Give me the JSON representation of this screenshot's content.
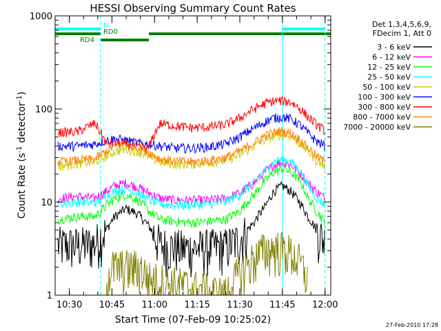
{
  "chart_data": {
    "type": "line",
    "title": "HESSI Observing Summary Count Rates",
    "xlabel": "Start Time (07-Feb-09 10:25:02)",
    "ylabel": "Count Rate (s⁻¹ detector⁻¹)",
    "ylabel_parts": {
      "main": "Count Rate (s",
      "sup1": "-1",
      "mid": " detector",
      "sup2": "-1",
      "end": ")"
    },
    "x_unit": "minutes after 10:25:02",
    "xlim": [
      0,
      97
    ],
    "ylim": [
      1,
      1000
    ],
    "y_scale": "log",
    "x_ticks": [
      {
        "label": "10:30",
        "value": 5
      },
      {
        "label": "10:45",
        "value": 20
      },
      {
        "label": "11:00",
        "value": 35
      },
      {
        "label": "11:15",
        "value": 50
      },
      {
        "label": "11:30",
        "value": 65
      },
      {
        "label": "11:45",
        "value": 80
      },
      {
        "label": "12:00",
        "value": 95
      }
    ],
    "y_ticks": [
      {
        "label": "1",
        "value": 1
      },
      {
        "label": "10",
        "value": 10
      },
      {
        "label": "100",
        "value": 100
      },
      {
        "label": "1000",
        "value": 1000
      }
    ],
    "legend": {
      "placement": "right",
      "header": [
        "Det 1,3,4,5,6,9,",
        "FDecim 1, Att 0"
      ]
    },
    "series": [
      {
        "name": "3 - 6 keV",
        "color": "#000000",
        "x": [
          1,
          8,
          14,
          18,
          21,
          25,
          29,
          33,
          37,
          42,
          48,
          54,
          60,
          65,
          70,
          74,
          77,
          80,
          83,
          86,
          89,
          92,
          95
        ],
        "y": [
          3.5,
          3.5,
          3.6,
          5,
          7,
          8.5,
          7.5,
          5.5,
          3.5,
          3.3,
          3.2,
          3.3,
          3.4,
          4,
          6,
          9,
          13,
          15,
          13,
          10,
          7,
          5,
          3.8
        ]
      },
      {
        "name": "6 - 12 keV",
        "color": "#ff00ff",
        "x": [
          1,
          8,
          14,
          18,
          21,
          25,
          29,
          33,
          37,
          42,
          48,
          54,
          60,
          65,
          70,
          74,
          77,
          80,
          83,
          86,
          89,
          92,
          95
        ],
        "y": [
          11,
          11.5,
          11,
          13,
          15,
          16,
          14.5,
          12.5,
          11,
          10.5,
          10.5,
          10.5,
          11,
          12.5,
          16,
          21,
          25,
          27,
          25,
          21,
          16,
          13,
          11
        ]
      },
      {
        "name": "12 - 25 keV",
        "color": "#00ff00",
        "x": [
          1,
          8,
          14,
          18,
          21,
          25,
          29,
          33,
          37,
          42,
          48,
          54,
          60,
          65,
          70,
          74,
          77,
          80,
          83,
          86,
          89,
          92,
          95
        ],
        "y": [
          6.5,
          7,
          7,
          9,
          11,
          12,
          10.5,
          8,
          6.5,
          6.2,
          6,
          6.2,
          6.5,
          8,
          12,
          17,
          21,
          23,
          21,
          17,
          11,
          8,
          6
        ]
      },
      {
        "name": "25 - 50 keV",
        "color": "#00ffff",
        "x": [
          1,
          8,
          14,
          18,
          21,
          25,
          29,
          33,
          37,
          42,
          48,
          54,
          60,
          65,
          70,
          74,
          77,
          80,
          83,
          86,
          89,
          92,
          95
        ],
        "y": [
          9.5,
          10,
          9.8,
          11.5,
          13,
          14,
          12.5,
          10.5,
          9.5,
          9.3,
          9.3,
          9.5,
          10,
          12,
          16,
          22,
          27,
          29,
          27,
          22,
          15,
          11,
          9.5
        ]
      },
      {
        "name": "50 - 100 keV",
        "color": "#cccc00",
        "x": [
          1,
          8,
          14,
          18,
          21,
          25,
          29,
          33,
          37,
          42,
          48,
          54,
          60,
          65,
          70,
          74,
          77,
          80,
          83,
          86,
          89,
          92,
          95
        ],
        "y": [
          24,
          26,
          27,
          31,
          35,
          37,
          35,
          31,
          27,
          25.5,
          25.5,
          26.5,
          28,
          32,
          40,
          47,
          51,
          53,
          50,
          43,
          35,
          28,
          24
        ]
      },
      {
        "name": "100 - 300 keV",
        "color": "#0000ff",
        "x": [
          1,
          8,
          14,
          18,
          21,
          25,
          29,
          33,
          37,
          42,
          48,
          54,
          60,
          65,
          70,
          74,
          77,
          80,
          83,
          86,
          89,
          92,
          95
        ],
        "y": [
          40,
          40,
          42,
          46,
          48,
          46,
          43,
          42,
          40,
          38,
          38,
          39,
          42,
          50,
          62,
          73,
          80,
          82,
          78,
          68,
          55,
          45,
          40
        ]
      },
      {
        "name": "300 - 800 keV",
        "color": "#ff0000",
        "x": [
          1,
          8,
          14,
          18,
          21,
          25,
          29,
          33,
          37,
          42,
          48,
          54,
          60,
          65,
          70,
          74,
          77,
          80,
          83,
          86,
          89,
          92,
          95
        ],
        "y": [
          56,
          57,
          70,
          42,
          43,
          42,
          39,
          38,
          70,
          66,
          63,
          64,
          68,
          80,
          100,
          115,
          122,
          123,
          118,
          102,
          82,
          68,
          58
        ]
      },
      {
        "name": "800 - 7000 keV",
        "color": "#ff8000",
        "x": [
          1,
          8,
          14,
          18,
          21,
          25,
          29,
          33,
          37,
          42,
          48,
          54,
          60,
          65,
          70,
          74,
          77,
          80,
          83,
          86,
          89,
          92,
          95
        ],
        "y": [
          27,
          28,
          29,
          35,
          40,
          42,
          39,
          34,
          29,
          27.5,
          27,
          28,
          30,
          35,
          43,
          52,
          56,
          58,
          55,
          47,
          38,
          31,
          27
        ]
      },
      {
        "name": "7000 - 20000 keV",
        "color": "#808000",
        "x": [
          18,
          20,
          25,
          30,
          33,
          60,
          64,
          67,
          70,
          73,
          76,
          79,
          82,
          85,
          87,
          89
        ],
        "y": [
          1.6,
          2,
          2,
          2,
          1.5,
          1,
          1.6,
          2,
          2.5,
          3,
          3.2,
          3.2,
          3,
          2.5,
          2,
          1.5
        ]
      }
    ],
    "flags": [
      {
        "label": "N",
        "color": "#00ffff",
        "segments": [
          [
            0,
            16
          ],
          [
            80,
            95
          ]
        ]
      },
      {
        "label": "RD0",
        "color": "#008000",
        "segments": [
          [
            0,
            16
          ],
          [
            33,
            97
          ]
        ]
      },
      {
        "label": "RD4",
        "color": "#008000",
        "segments": [
          [
            16,
            33
          ]
        ]
      }
    ],
    "markers": [
      {
        "x": 16,
        "style": "dashed",
        "color": "#00ffff"
      },
      {
        "x": 80,
        "style": "solid",
        "color": "#00ffff"
      },
      {
        "x": 95,
        "style": "dashed",
        "color": "#00ffff"
      }
    ],
    "grid": false
  },
  "footer": {
    "date": "27-Feb-2010 17:28"
  }
}
